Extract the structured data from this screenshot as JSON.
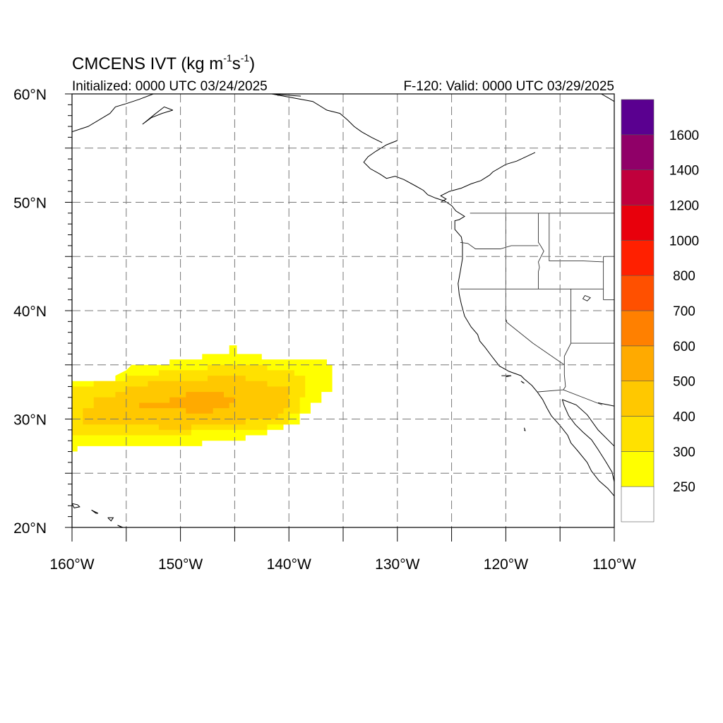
{
  "title": {
    "prefix": "CMCENS IVT (kg m",
    "exp1": "-1",
    "mid": "s",
    "exp2": "-1",
    "suffix": ")"
  },
  "initialized_label": "Initialized: 0000 UTC 03/24/2025",
  "valid_label": "F-120: Valid: 0000 UTC 03/29/2025",
  "map": {
    "lon_range": [
      -160,
      -110
    ],
    "lat_range": [
      20,
      60
    ],
    "lon_labels": [
      {
        "lon": -160,
        "text": "160°W"
      },
      {
        "lon": -150,
        "text": "150°W"
      },
      {
        "lon": -140,
        "text": "140°W"
      },
      {
        "lon": -130,
        "text": "130°W"
      },
      {
        "lon": -120,
        "text": "120°W"
      },
      {
        "lon": -110,
        "text": "110°W"
      }
    ],
    "lat_labels": [
      {
        "lat": 60,
        "text": "60°N"
      },
      {
        "lat": 50,
        "text": "50°N"
      },
      {
        "lat": 40,
        "text": "40°N"
      },
      {
        "lat": 30,
        "text": "30°N"
      },
      {
        "lat": 20,
        "text": "20°N"
      }
    ],
    "grid_lons": [
      -155,
      -150,
      -145,
      -140,
      -135,
      -130,
      -125,
      -120,
      -115
    ],
    "grid_lats": [
      25,
      30,
      35,
      40,
      45,
      50,
      55
    ]
  },
  "colorbar": {
    "levels": [
      250,
      300,
      400,
      500,
      600,
      700,
      800,
      1000,
      1200,
      1400,
      1600
    ],
    "labels": [
      "250",
      "300",
      "400",
      "500",
      "600",
      "700",
      "800",
      "1000",
      "1200",
      "1400",
      "1600"
    ],
    "colors": [
      "#ffffff",
      "#ffff00",
      "#ffe100",
      "#ffc800",
      "#ffaa00",
      "#ff8000",
      "#ff5000",
      "#ff2000",
      "#e8000c",
      "#c0003c",
      "#900068",
      "#5a0090"
    ]
  },
  "ivt_regions": [
    {
      "level": 250,
      "color": "#ffff00",
      "poly": [
        [
          -160,
          33.5
        ],
        [
          -156,
          33.5
        ],
        [
          -156,
          34
        ],
        [
          -155,
          34.5
        ],
        [
          -154.5,
          35
        ],
        [
          -151,
          35
        ],
        [
          -151,
          35.5
        ],
        [
          -148,
          35.5
        ],
        [
          -148,
          36
        ],
        [
          -145.5,
          36
        ],
        [
          -145.5,
          36.8
        ],
        [
          -144.8,
          36.8
        ],
        [
          -144.8,
          36
        ],
        [
          -142.5,
          36
        ],
        [
          -142.5,
          35.5
        ],
        [
          -136.5,
          35.5
        ],
        [
          -136.5,
          35
        ],
        [
          -136,
          35
        ],
        [
          -136,
          32.5
        ],
        [
          -137,
          32.5
        ],
        [
          -137,
          31.5
        ],
        [
          -138,
          31.5
        ],
        [
          -138,
          30.5
        ],
        [
          -139,
          30.5
        ],
        [
          -139,
          29.5
        ],
        [
          -140.5,
          29.5
        ],
        [
          -140.5,
          29
        ],
        [
          -142,
          29
        ],
        [
          -142,
          28.5
        ],
        [
          -144,
          28.5
        ],
        [
          -144,
          28
        ],
        [
          -148,
          28
        ],
        [
          -148,
          27.5
        ],
        [
          -159.5,
          27.5
        ],
        [
          -159.5,
          27
        ],
        [
          -160,
          27
        ]
      ]
    },
    {
      "level": 300,
      "color": "#ffe100",
      "poly": [
        [
          -160,
          33
        ],
        [
          -158,
          33
        ],
        [
          -158,
          33.5
        ],
        [
          -155,
          33.5
        ],
        [
          -155,
          34
        ],
        [
          -152,
          34
        ],
        [
          -152,
          34.5
        ],
        [
          -147.5,
          34.5
        ],
        [
          -147.5,
          35
        ],
        [
          -142,
          35
        ],
        [
          -142,
          34.5
        ],
        [
          -139.5,
          34.5
        ],
        [
          -139.5,
          34
        ],
        [
          -138.5,
          34
        ],
        [
          -138.5,
          32
        ],
        [
          -139,
          32
        ],
        [
          -139,
          30.5
        ],
        [
          -140,
          30.5
        ],
        [
          -140,
          29.5
        ],
        [
          -142,
          29.5
        ],
        [
          -142,
          29
        ],
        [
          -149,
          29
        ],
        [
          -149,
          28.5
        ],
        [
          -160,
          28.5
        ]
      ]
    },
    {
      "level": 400,
      "color": "#ffc800",
      "poly": [
        [
          -159,
          31
        ],
        [
          -158,
          31
        ],
        [
          -158,
          32
        ],
        [
          -156,
          32
        ],
        [
          -156,
          32.5
        ],
        [
          -155,
          32.5
        ],
        [
          -155,
          33
        ],
        [
          -153,
          33
        ],
        [
          -153,
          33.5
        ],
        [
          -147.5,
          33.5
        ],
        [
          -147.5,
          34
        ],
        [
          -144,
          34
        ],
        [
          -144,
          33.5
        ],
        [
          -142,
          33.5
        ],
        [
          -142,
          33
        ],
        [
          -140,
          33
        ],
        [
          -140,
          31
        ],
        [
          -140.5,
          31
        ],
        [
          -140.5,
          30.5
        ],
        [
          -141,
          30.5
        ],
        [
          -141,
          30
        ],
        [
          -144,
          30
        ],
        [
          -144,
          29.5
        ],
        [
          -149,
          29.5
        ],
        [
          -149,
          29
        ],
        [
          -152,
          29
        ],
        [
          -152,
          29.5
        ],
        [
          -159,
          29.5
        ]
      ]
    },
    {
      "level": 500,
      "color": "#ffaa00",
      "poly": [
        [
          -153.8,
          31.5
        ],
        [
          -151,
          31.5
        ],
        [
          -151,
          32
        ],
        [
          -149.5,
          32
        ],
        [
          -149.5,
          32.5
        ],
        [
          -146,
          32.5
        ],
        [
          -146,
          32
        ],
        [
          -145,
          32
        ],
        [
          -145,
          31.5
        ],
        [
          -145.5,
          31.5
        ],
        [
          -145.5,
          31
        ],
        [
          -147,
          31
        ],
        [
          -147,
          30.5
        ],
        [
          -149.5,
          30.5
        ],
        [
          -149.5,
          31
        ],
        [
          -153.8,
          31
        ]
      ]
    }
  ],
  "coast_lines": [
    [
      [
        -130,
        55.7
      ],
      [
        -131,
        55.3
      ],
      [
        -132,
        54.7
      ],
      [
        -132.7,
        54.2
      ],
      [
        -133.1,
        53.7
      ],
      [
        -132.5,
        53.1
      ],
      [
        -131.6,
        52.6
      ],
      [
        -131,
        52.2
      ],
      [
        -130.2,
        52.4
      ],
      [
        -129.4,
        52.1
      ],
      [
        -128.3,
        51.5
      ],
      [
        -127.6,
        51.1
      ],
      [
        -127.2,
        50.7
      ],
      [
        -126.5,
        50.4
      ],
      [
        -125.6,
        50.1
      ],
      [
        -125,
        49.7
      ],
      [
        -124.6,
        49.2
      ],
      [
        -123.8,
        48.7
      ],
      [
        -124.3,
        48.4
      ],
      [
        -124.7,
        48.3
      ],
      [
        -124.7,
        47.5
      ],
      [
        -124.1,
        46.8
      ],
      [
        -124,
        46.2
      ],
      [
        -124,
        44.8
      ],
      [
        -124.2,
        43.6
      ],
      [
        -124.4,
        42.5
      ],
      [
        -124.3,
        41.5
      ],
      [
        -124.1,
        40.6
      ],
      [
        -123.8,
        39.5
      ],
      [
        -123.2,
        38.5
      ],
      [
        -122.6,
        37.8
      ],
      [
        -122.4,
        37.2
      ],
      [
        -121.9,
        36.6
      ],
      [
        -121.3,
        35.8
      ],
      [
        -120.6,
        34.9
      ],
      [
        -119.7,
        34.4
      ],
      [
        -118.6,
        34
      ],
      [
        -118.3,
        33.7
      ],
      [
        -117.6,
        33.1
      ],
      [
        -117.1,
        32.5
      ],
      [
        -116.6,
        31.8
      ],
      [
        -116.2,
        31
      ],
      [
        -115.8,
        30.3
      ],
      [
        -115,
        29.4
      ],
      [
        -114.3,
        28.5
      ],
      [
        -114,
        27.8
      ],
      [
        -113.4,
        27.1
      ],
      [
        -112.5,
        26
      ],
      [
        -112.1,
        25.2
      ],
      [
        -111.4,
        24.3
      ],
      [
        -110.6,
        23.6
      ],
      [
        -110,
        22.9
      ]
    ],
    [
      [
        -114.8,
        31.8
      ],
      [
        -114.6,
        31.2
      ],
      [
        -114.2,
        30.3
      ],
      [
        -113.6,
        29.5
      ],
      [
        -112.9,
        28.8
      ],
      [
        -112.1,
        28.1
      ],
      [
        -111.5,
        27.2
      ],
      [
        -110.8,
        26.1
      ],
      [
        -110.2,
        25.1
      ],
      [
        -110,
        24.2
      ]
    ],
    [
      [
        -114.8,
        31.8
      ],
      [
        -113.5,
        31.3
      ],
      [
        -112.5,
        30.4
      ],
      [
        -111.5,
        29
      ],
      [
        -110.5,
        28
      ],
      [
        -110,
        27.5
      ]
    ],
    [
      [
        -110,
        31.2
      ],
      [
        -111.5,
        31.5
      ]
    ],
    [
      [
        -117.3,
        54.6
      ],
      [
        -119,
        53.8
      ],
      [
        -120,
        53.5
      ],
      [
        -121.2,
        52.8
      ],
      [
        -121.5,
        52.5
      ],
      [
        -122.3,
        52
      ],
      [
        -123.2,
        51.7
      ],
      [
        -124.1,
        51.3
      ],
      [
        -125.2,
        51
      ],
      [
        -126,
        50.6
      ],
      [
        -125.5,
        50.3
      ],
      [
        -126,
        50
      ]
    ],
    [
      [
        -138.9,
        59.8
      ],
      [
        -140.5,
        59.9
      ],
      [
        -141.6,
        60
      ],
      [
        -137.8,
        59.3
      ],
      [
        -136.5,
        58.5
      ],
      [
        -135.3,
        58.2
      ],
      [
        -134.6,
        57.6
      ],
      [
        -134,
        57
      ],
      [
        -133.3,
        56.5
      ],
      [
        -132.4,
        56
      ],
      [
        -131.4,
        55.5
      ]
    ],
    [
      [
        -110,
        59.3
      ],
      [
        -110.5,
        59.6
      ],
      [
        -111.2,
        60
      ]
    ],
    [
      [
        -160,
        56.5
      ],
      [
        -158.5,
        57
      ],
      [
        -157.5,
        57.6
      ],
      [
        -156.5,
        58.2
      ],
      [
        -156,
        58.8
      ],
      [
        -155,
        59.1
      ],
      [
        -153.8,
        59.5
      ],
      [
        -152.5,
        60
      ],
      [
        -152,
        60.3
      ]
    ],
    [
      [
        -150.7,
        58.5
      ],
      [
        -151.7,
        58.2
      ],
      [
        -152.7,
        57.8
      ],
      [
        -153.5,
        57.2
      ],
      [
        -153,
        57.6
      ],
      [
        -152.4,
        58.1
      ],
      [
        -151.5,
        58.8
      ],
      [
        -150.7,
        58.5
      ]
    ],
    [
      [
        -160,
        22.2
      ],
      [
        -159.5,
        22.1
      ],
      [
        -159.3,
        21.9
      ],
      [
        -159.8,
        21.8
      ],
      [
        -160,
        22.2
      ]
    ],
    [
      [
        -158.2,
        21.6
      ],
      [
        -157.8,
        21.3
      ],
      [
        -157.6,
        21.3
      ],
      [
        -158,
        21.5
      ],
      [
        -158.2,
        21.6
      ]
    ],
    [
      [
        -156.7,
        20.9
      ],
      [
        -156.2,
        20.9
      ],
      [
        -156.4,
        20.6
      ],
      [
        -156.7,
        20.9
      ]
    ],
    [
      [
        -155.8,
        20.2
      ],
      [
        -155,
        19.8
      ],
      [
        -154.8,
        19.5
      ],
      [
        -155.3,
        20
      ],
      [
        -155.8,
        20.2
      ]
    ],
    [
      [
        -118.6,
        33.5
      ],
      [
        -118.3,
        33.3
      ],
      [
        -118.5,
        33.4
      ]
    ],
    [
      [
        -120.4,
        34
      ],
      [
        -119.5,
        34
      ],
      [
        -120,
        33.9
      ]
    ],
    [
      [
        -118.3,
        29.2
      ],
      [
        -118.2,
        28.9
      ],
      [
        -118.3,
        29
      ]
    ]
  ],
  "border_lines": [
    [
      [
        -123.3,
        49
      ],
      [
        -110,
        49
      ]
    ],
    [
      [
        -141,
        60
      ],
      [
        -141,
        59.8
      ]
    ],
    [
      [
        -117,
        49
      ],
      [
        -117,
        46.3
      ],
      [
        -116.8,
        46
      ],
      [
        -116.5,
        45.5
      ],
      [
        -117,
        44.5
      ],
      [
        -116.9,
        44
      ],
      [
        -117,
        43.6
      ],
      [
        -117,
        42
      ]
    ],
    [
      [
        -124.2,
        46.3
      ],
      [
        -123.5,
        46.2
      ],
      [
        -122.8,
        45.7
      ],
      [
        -121.5,
        45.7
      ],
      [
        -120.5,
        45.7
      ],
      [
        -119.5,
        46
      ],
      [
        -117,
        46
      ]
    ],
    [
      [
        -124.2,
        42
      ],
      [
        -117,
        42
      ],
      [
        -114,
        42
      ],
      [
        -111,
        42
      ]
    ],
    [
      [
        -120,
        42
      ],
      [
        -120,
        39
      ],
      [
        -117.5,
        37
      ],
      [
        -114.6,
        35
      ]
    ],
    [
      [
        -114,
        42
      ],
      [
        -114,
        37
      ],
      [
        -114.6,
        35.8
      ],
      [
        -114.6,
        35
      ]
    ],
    [
      [
        -114,
        37
      ],
      [
        -110,
        37
      ]
    ],
    [
      [
        -117.1,
        32.5
      ],
      [
        -114.7,
        32.7
      ],
      [
        -111.1,
        31.3
      ]
    ],
    [
      [
        -114.6,
        35
      ],
      [
        -114.6,
        34.1
      ],
      [
        -114.5,
        33
      ],
      [
        -114.7,
        32.7
      ]
    ],
    [
      [
        -111,
        41
      ],
      [
        -110,
        41
      ]
    ],
    [
      [
        -111,
        45
      ],
      [
        -110,
        45
      ]
    ],
    [
      [
        -111,
        41
      ],
      [
        -111,
        45
      ]
    ],
    [
      [
        -120,
        42
      ],
      [
        -120,
        49
      ]
    ],
    [
      [
        -116,
        49
      ],
      [
        -116,
        44.6
      ],
      [
        -113,
        44.6
      ],
      [
        -111,
        44.5
      ]
    ]
  ],
  "lake_lines": [
    [
      [
        -112.7,
        41.4
      ],
      [
        -112.2,
        41.2
      ],
      [
        -112.5,
        40.9
      ],
      [
        -112.9,
        41.1
      ],
      [
        -112.7,
        41.4
      ]
    ],
    [
      [
        -120,
        39.2
      ],
      [
        -119.9,
        39
      ],
      [
        -120,
        39.2
      ]
    ]
  ]
}
